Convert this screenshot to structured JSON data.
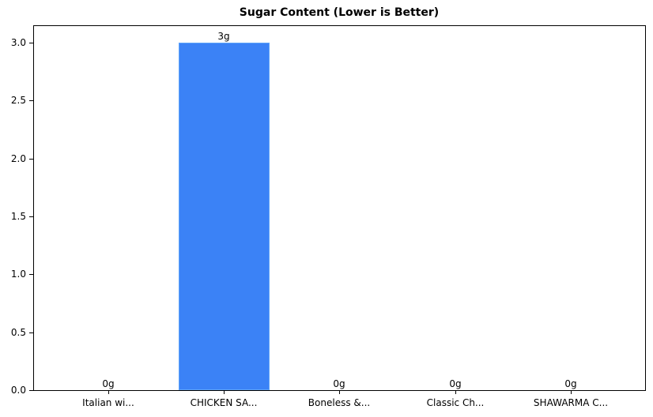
{
  "chart_data": {
    "type": "bar",
    "title": "Sugar Content (Lower is Better)",
    "xlabel": "",
    "ylabel": "",
    "categories": [
      "Italian wi...",
      "CHICKEN SA...",
      "Boneless &...",
      "Classic Ch...",
      "SHAWARMA C..."
    ],
    "values": [
      0,
      3,
      0,
      0,
      0
    ],
    "value_labels": [
      "0g",
      "3g",
      "0g",
      "0g",
      "0g"
    ],
    "ylim": [
      0,
      3.15
    ],
    "yticks": [
      "0.0",
      "0.5",
      "1.0",
      "1.5",
      "2.0",
      "2.5",
      "3.0"
    ],
    "bar_color": "#3b82f6",
    "grid": false,
    "legend": null
  }
}
